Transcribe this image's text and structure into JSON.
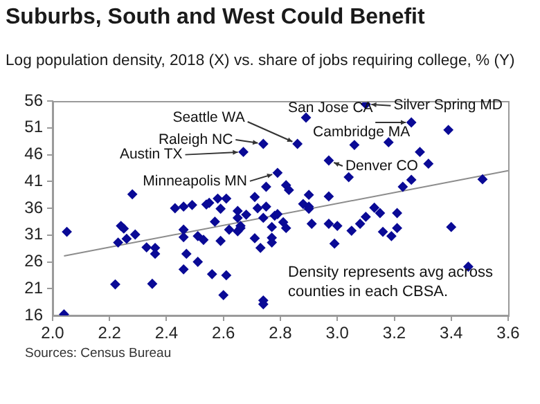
{
  "chart_data": {
    "type": "scatter",
    "title": "Suburbs, South and West Could Benefit",
    "subtitle": "Log population density, 2018 (X) vs. share of jobs requiring college, % (Y)",
    "grid": false,
    "legend": false,
    "xlim": [
      2.0,
      3.6
    ],
    "xticks": [
      {
        "value": 2,
        "label": "2.0"
      },
      2.2,
      2.4,
      2.6,
      2.8,
      {
        "value": 3,
        "label": "3.0"
      },
      3.2,
      3.4,
      3.6
    ],
    "ylim": [
      16,
      56
    ],
    "yticks": [
      16,
      21,
      26,
      31,
      36,
      41,
      46,
      51,
      56
    ],
    "series": [
      {
        "color": "#0a0a96",
        "marker": "diamond",
        "x": [
          2.04,
          2.05,
          2.22,
          2.23,
          2.24,
          2.25,
          2.26,
          2.29,
          2.28,
          2.33,
          2.36,
          2.36,
          2.35,
          2.43,
          2.46,
          2.46,
          2.46,
          2.46,
          2.47,
          2.49,
          2.51,
          2.51,
          2.53,
          2.54,
          2.55,
          2.57,
          2.56,
          2.58,
          2.59,
          2.59,
          2.61,
          2.6,
          2.61,
          2.62,
          2.65,
          2.65,
          2.65,
          2.66,
          2.66,
          2.67,
          2.68,
          2.71,
          2.71,
          2.72,
          2.73,
          2.74,
          2.74,
          2.74,
          2.74,
          2.75,
          2.75,
          2.77,
          2.77,
          2.77,
          2.78,
          2.79,
          2.79,
          2.81,
          2.82,
          2.82,
          2.83,
          2.86,
          2.89,
          2.88,
          2.9,
          2.9,
          2.9,
          2.91,
          2.97,
          2.97,
          2.97,
          3.0,
          2.99,
          3.04,
          3.05,
          3.06,
          3.08,
          3.1,
          3.1,
          3.13,
          3.15,
          3.16,
          3.18,
          3.19,
          3.21,
          3.21,
          3.23,
          3.26,
          3.26,
          3.29,
          3.32,
          3.39,
          3.4,
          3.46,
          3.51
        ],
        "values": [
          16.2,
          31.6,
          21.8,
          29.6,
          32.7,
          32.2,
          30.3,
          31.1,
          38.6,
          28.7,
          28.6,
          27.5,
          21.9,
          36.0,
          36.3,
          32.0,
          30.6,
          24.6,
          27.5,
          36.6,
          26.0,
          30.8,
          30.1,
          36.7,
          37.0,
          33.5,
          23.7,
          37.8,
          35.9,
          29.9,
          37.8,
          19.8,
          23.5,
          32.0,
          35.5,
          34.2,
          31.7,
          32.3,
          32.7,
          46.5,
          34.8,
          38.1,
          30.4,
          36.0,
          28.6,
          48.0,
          18.8,
          18.1,
          34.2,
          40.0,
          36.3,
          29.6,
          30.5,
          32.5,
          34.6,
          42.6,
          34.9,
          33.4,
          32.3,
          40.3,
          39.4,
          48.0,
          52.9,
          36.8,
          38.5,
          36.3,
          35.9,
          33.1,
          44.9,
          38.2,
          33.1,
          32.7,
          29.4,
          41.8,
          31.8,
          47.8,
          33.1,
          34.4,
          55.4,
          36.1,
          35.1,
          31.6,
          48.3,
          30.8,
          35.1,
          32.3,
          40.0,
          41.3,
          52.0,
          46.5,
          44.3,
          50.6,
          32.5,
          25.1,
          41.4
        ]
      },
      {
        "type": "line",
        "color": "#8c8c8c",
        "x": [
          2.04,
          3.6
        ],
        "values": [
          27.1,
          43.0
        ]
      }
    ],
    "annotations": [
      {
        "text": "San Jose CA",
        "x": 2.89,
        "y": 52.9
      },
      {
        "text": "Silver Spring MD",
        "x": 3.1,
        "y": 55.4
      },
      {
        "text": "Seattle WA",
        "x": 2.86,
        "y": 48.0
      },
      {
        "text": "Cambridge MA",
        "x": 3.26,
        "y": 52.0
      },
      {
        "text": "Raleigh NC",
        "x": 2.74,
        "y": 48.0
      },
      {
        "text": "Austin TX",
        "x": 2.67,
        "y": 46.5
      },
      {
        "text": "Denver CO",
        "x": 2.97,
        "y": 44.9
      },
      {
        "text": "Minneapolis MN",
        "x": 2.79,
        "y": 42.6
      },
      "Density represents avg across counties in each CBSA.",
      "Sources: Census Bureau"
    ]
  }
}
